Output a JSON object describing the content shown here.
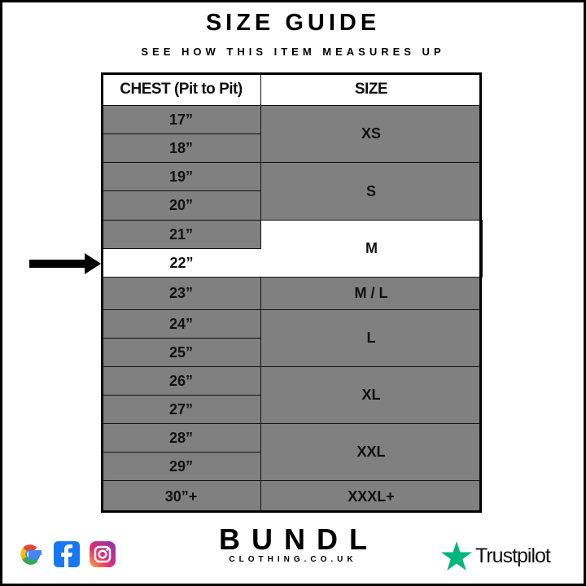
{
  "title": "SIZE GUIDE",
  "subtitle": "SEE HOW THIS ITEM MEASURES UP",
  "table": {
    "headers": [
      "CHEST (Pit to Pit)",
      "SIZE"
    ],
    "chest": [
      "17”",
      "18”",
      "19”",
      "20”",
      "21”",
      "22”",
      "23”",
      "24”",
      "25”",
      "26”",
      "27”",
      "28”",
      "29”",
      "30”+"
    ],
    "sizes": [
      "XS",
      "S",
      "M",
      "M / L",
      "L",
      "XL",
      "XXL",
      "XXXL+"
    ],
    "highlighted_chest": "22”",
    "highlighted_size": "M"
  },
  "footer": {
    "brand": "BUNDL",
    "brand_sub": "CLOTHING.CO.UK",
    "social_icons": [
      "google-icon",
      "facebook-icon",
      "instagram-icon"
    ],
    "trustpilot": "Trustpilot"
  },
  "colors": {
    "row_grey": "#808080",
    "highlight": "#ffffff",
    "trustpilot_green": "#00b67a"
  }
}
